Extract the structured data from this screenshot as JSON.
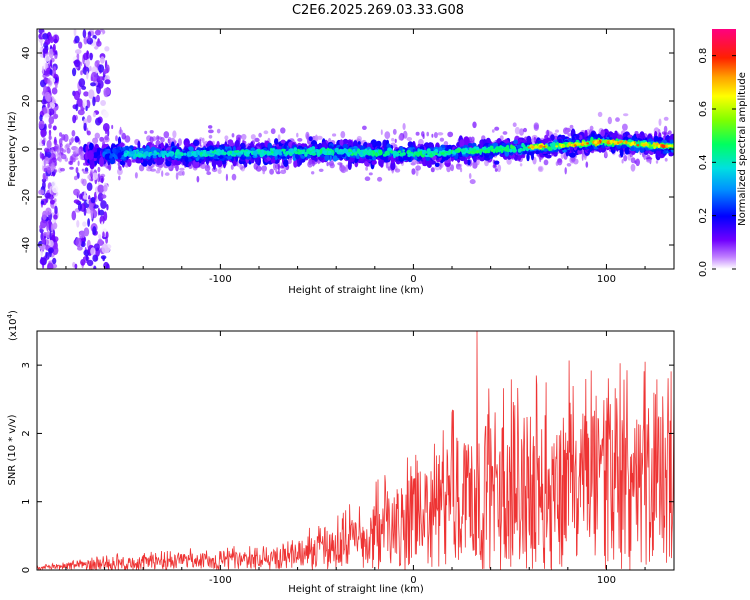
{
  "title": "C2E6.2025.269.03.33.G08",
  "chart_data": [
    {
      "type": "heatmap",
      "xlabel": "Height of straight line (km)",
      "ylabel": "Frequency (Hz)",
      "xlim": [
        -195,
        135
      ],
      "ylim": [
        -50,
        50
      ],
      "xticks": [
        -100,
        0,
        100
      ],
      "xtick_labels": [
        "-100",
        "0",
        "100"
      ],
      "yticks": [
        -40,
        -20,
        0,
        20,
        40
      ],
      "ytick_labels": [
        "-40",
        "-20",
        "0",
        "20",
        "40"
      ],
      "colorbar": {
        "label": "Normalized spectral amplitude",
        "range": [
          0,
          0.9
        ],
        "ticks": [
          0.0,
          0.2,
          0.4,
          0.6,
          0.8
        ],
        "tick_labels": [
          "0.0",
          "0.2",
          "0.4",
          "0.6",
          "0.8"
        ]
      },
      "ridge": {
        "x": [
          -195,
          -150,
          -100,
          -50,
          0,
          50,
          100,
          135
        ],
        "frequency": [
          -3,
          -2,
          -2,
          -1,
          -2,
          0,
          3,
          1
        ]
      }
    },
    {
      "type": "line",
      "xlabel": "Height of straight line (km)",
      "ylabel": "SNR (10 * v/v)",
      "multiplier": "(x10",
      "multiplier_exp": "4",
      "multiplier_close": ")",
      "xlim": [
        -195,
        135
      ],
      "ylim": [
        0,
        3.5
      ],
      "xticks": [
        -100,
        0,
        100
      ],
      "xtick_labels": [
        "-100",
        "0",
        "100"
      ],
      "yticks": [
        0,
        1,
        2,
        3
      ],
      "ytick_labels": [
        "0",
        "1",
        "2",
        "3"
      ],
      "series": [
        {
          "name": "SNR",
          "color": "#ee3333",
          "x": [
            -195,
            -150,
            -100,
            -75,
            -50,
            -25,
            0,
            25,
            50,
            75,
            100,
            135
          ],
          "envelope": [
            0.05,
            0.25,
            0.3,
            0.35,
            0.6,
            1.0,
            1.6,
            2.4,
            2.6,
            2.7,
            2.8,
            2.6
          ],
          "peak": {
            "x": 33,
            "y": 3.5
          }
        }
      ]
    }
  ]
}
